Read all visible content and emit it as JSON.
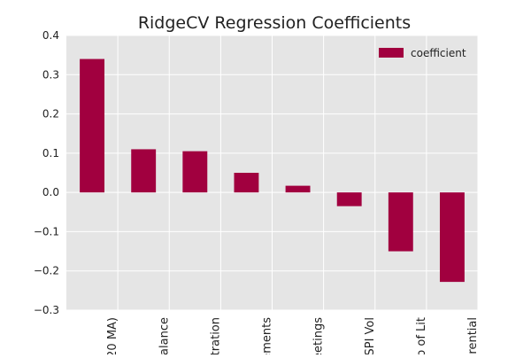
{
  "chart_data": {
    "type": "bar",
    "title": "RidgeCV Regression Coefficients",
    "xlabel": "",
    "ylabel": "",
    "ylim": [
      -0.3,
      0.4
    ],
    "yticks": [
      "0.4",
      "0.3",
      "0.2",
      "0.1",
      "0.0",
      "−0.1",
      "−0.2",
      "−0.3"
    ],
    "yticks_values": [
      0.4,
      0.3,
      0.2,
      0.1,
      0.0,
      -0.1,
      -0.2,
      -0.3
    ],
    "categories": [
      "20 MA)",
      "alance",
      "tration",
      "ements",
      "eetings",
      "SPI Vol",
      "o of Lit",
      "rential"
    ],
    "series": [
      {
        "name": "coefficient",
        "values": [
          0.34,
          0.11,
          0.105,
          0.05,
          0.017,
          -0.035,
          -0.15,
          -0.228
        ]
      }
    ],
    "legend_position": "top-right",
    "grid": true,
    "colors": {
      "bar": "#a1003f",
      "plot_bg": "#e5e5e5",
      "grid": "#ffffff",
      "text": "#222222"
    }
  }
}
